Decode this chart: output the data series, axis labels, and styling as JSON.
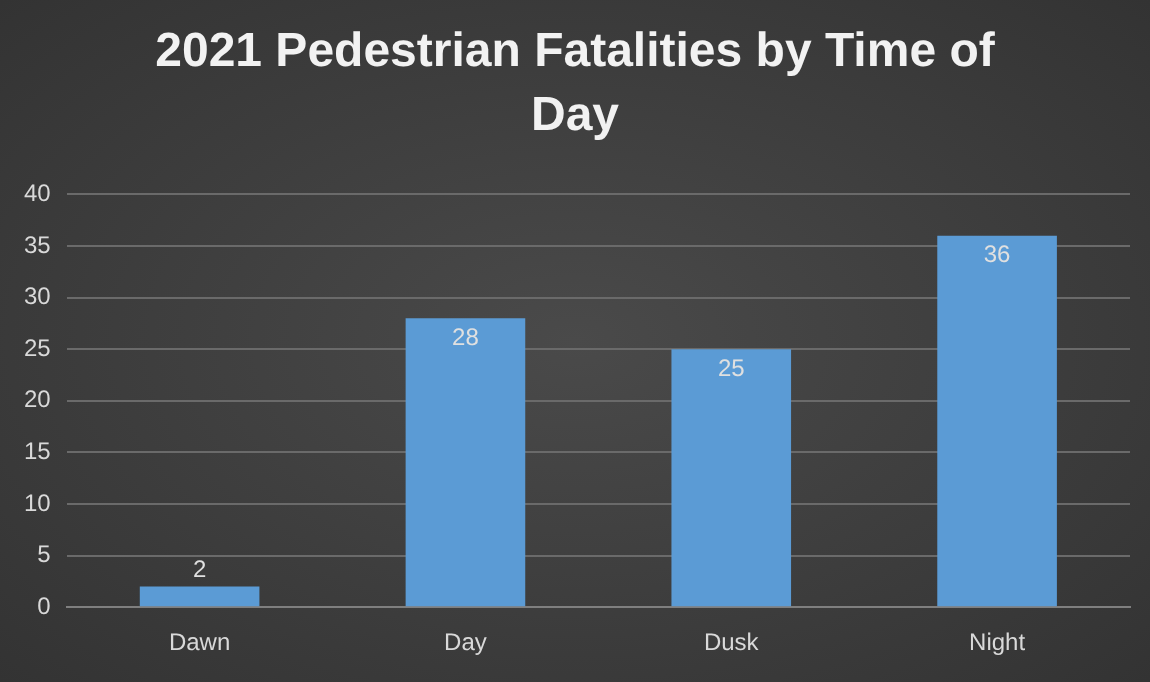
{
  "chart_data": {
    "type": "bar",
    "title": "2021 Pedestrian Fatalities by Time of Day",
    "categories": [
      "Dawn",
      "Day",
      "Dusk",
      "Night"
    ],
    "values": [
      2,
      28,
      25,
      36
    ],
    "color": "#5b9bd5",
    "ylim": [
      0,
      40
    ],
    "yticks": [
      0,
      5,
      10,
      15,
      20,
      25,
      30,
      35,
      40
    ],
    "grid": "y",
    "data_labels": true,
    "legend": false
  }
}
